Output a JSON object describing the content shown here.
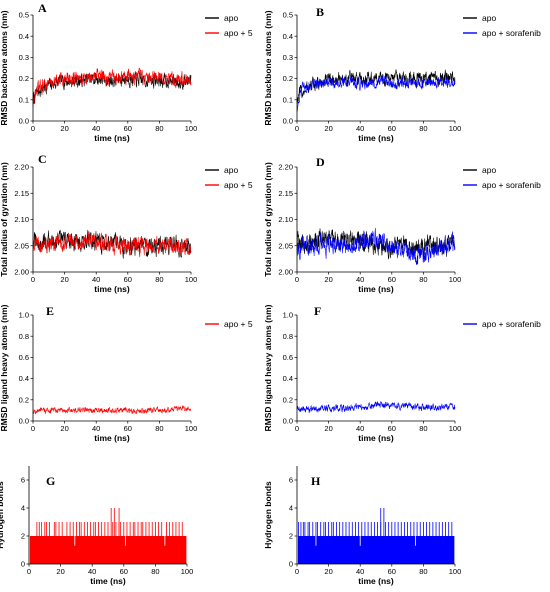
{
  "colors": {
    "apo": "#000000",
    "ligand5": "#ff0000",
    "sorafenib": "#0000ff"
  },
  "chart_data": [
    {
      "panel": "A",
      "type": "line",
      "xlabel": "time (ns)",
      "ylabel": "RMSD backbone atoms (nm)",
      "xlim": [
        0,
        100
      ],
      "ylim": [
        0.0,
        0.5
      ],
      "xticks": [
        "0",
        "20",
        "40",
        "60",
        "80",
        "100"
      ],
      "yticks": [
        "0.0",
        "0.1",
        "0.2",
        "0.3",
        "0.4",
        "0.5"
      ],
      "legend": "top-right",
      "series": [
        {
          "name": "apo",
          "color": "#000000",
          "x": [
            0,
            2,
            5,
            10,
            15,
            20,
            30,
            40,
            50,
            60,
            70,
            80,
            90,
            100
          ],
          "y": [
            0.1,
            0.13,
            0.15,
            0.17,
            0.18,
            0.19,
            0.19,
            0.2,
            0.19,
            0.2,
            0.19,
            0.19,
            0.19,
            0.19
          ],
          "noise": 0.025
        },
        {
          "name": "apo + 5",
          "color": "#ff0000",
          "x": [
            0,
            2,
            5,
            10,
            15,
            20,
            30,
            40,
            50,
            60,
            70,
            80,
            90,
            100
          ],
          "y": [
            0.08,
            0.14,
            0.16,
            0.18,
            0.19,
            0.2,
            0.2,
            0.21,
            0.2,
            0.21,
            0.2,
            0.2,
            0.2,
            0.2
          ],
          "noise": 0.025
        }
      ]
    },
    {
      "panel": "B",
      "type": "line",
      "xlabel": "time (ns)",
      "ylabel": "RMSD backbone atoms (nm)",
      "xlim": [
        0,
        100
      ],
      "ylim": [
        0.0,
        0.5
      ],
      "xticks": [
        "0",
        "20",
        "40",
        "60",
        "80",
        "100"
      ],
      "yticks": [
        "0.0",
        "0.1",
        "0.2",
        "0.3",
        "0.4",
        "0.5"
      ],
      "legend": "top-right",
      "series": [
        {
          "name": "apo",
          "color": "#000000",
          "x": [
            0,
            2,
            5,
            10,
            15,
            20,
            30,
            40,
            50,
            60,
            70,
            80,
            90,
            100
          ],
          "y": [
            0.1,
            0.13,
            0.15,
            0.17,
            0.18,
            0.19,
            0.2,
            0.2,
            0.2,
            0.21,
            0.2,
            0.2,
            0.2,
            0.2
          ],
          "noise": 0.025
        },
        {
          "name": "apo + sorafenib",
          "color": "#0000ff",
          "x": [
            0,
            2,
            5,
            10,
            15,
            20,
            30,
            40,
            50,
            60,
            70,
            80,
            90,
            100
          ],
          "y": [
            0.05,
            0.14,
            0.16,
            0.17,
            0.18,
            0.18,
            0.18,
            0.18,
            0.18,
            0.18,
            0.18,
            0.18,
            0.18,
            0.18
          ],
          "noise": 0.02
        }
      ]
    },
    {
      "panel": "C",
      "type": "line",
      "xlabel": "time (ns)",
      "ylabel": "Total radius of gyration (nm)",
      "xlim": [
        0,
        100
      ],
      "ylim": [
        2.0,
        2.2
      ],
      "xticks": [
        "0",
        "20",
        "40",
        "60",
        "80",
        "100"
      ],
      "yticks": [
        "2.00",
        "2.05",
        "2.10",
        "2.15",
        "2.20"
      ],
      "legend": "top-right",
      "series": [
        {
          "name": "apo",
          "color": "#000000",
          "x": [
            0,
            5,
            10,
            20,
            30,
            40,
            50,
            60,
            70,
            80,
            90,
            100
          ],
          "y": [
            2.06,
            2.05,
            2.06,
            2.06,
            2.06,
            2.06,
            2.05,
            2.05,
            2.05,
            2.05,
            2.05,
            2.05
          ],
          "noise": 0.014
        },
        {
          "name": "apo + 5",
          "color": "#ff0000",
          "x": [
            0,
            5,
            10,
            20,
            30,
            40,
            50,
            60,
            70,
            80,
            90,
            100
          ],
          "y": [
            2.06,
            2.05,
            2.05,
            2.06,
            2.06,
            2.06,
            2.05,
            2.05,
            2.05,
            2.05,
            2.05,
            2.05
          ],
          "noise": 0.012
        }
      ]
    },
    {
      "panel": "D",
      "type": "line",
      "xlabel": "time (ns)",
      "ylabel": "Total radius of gyration (nm)",
      "xlim": [
        0,
        100
      ],
      "ylim": [
        2.0,
        2.2
      ],
      "xticks": [
        "0",
        "20",
        "40",
        "60",
        "80",
        "100"
      ],
      "yticks": [
        "2.00",
        "2.05",
        "2.10",
        "2.15",
        "2.20"
      ],
      "legend": "top-right",
      "series": [
        {
          "name": "apo",
          "color": "#000000",
          "x": [
            0,
            5,
            10,
            20,
            30,
            40,
            50,
            60,
            70,
            80,
            90,
            100
          ],
          "y": [
            2.06,
            2.05,
            2.06,
            2.06,
            2.06,
            2.06,
            2.05,
            2.05,
            2.05,
            2.05,
            2.05,
            2.05
          ],
          "noise": 0.014
        },
        {
          "name": "apo + sorafenib",
          "color": "#0000ff",
          "x": [
            0,
            5,
            10,
            20,
            30,
            40,
            50,
            60,
            70,
            80,
            90,
            100
          ],
          "y": [
            2.05,
            2.05,
            2.05,
            2.05,
            2.05,
            2.06,
            2.06,
            2.05,
            2.04,
            2.03,
            2.05,
            2.05
          ],
          "noise": 0.014
        }
      ]
    },
    {
      "panel": "E",
      "type": "line",
      "xlabel": "time (ns)",
      "ylabel": "RMSD ligand heavy atoms (nm)",
      "xlim": [
        0,
        100
      ],
      "ylim": [
        0.0,
        1.0
      ],
      "xticks": [
        "0",
        "20",
        "40",
        "60",
        "80",
        "100"
      ],
      "yticks": [
        "0.0",
        "0.2",
        "0.4",
        "0.6",
        "0.8",
        "1.0"
      ],
      "legend": "top-right",
      "series": [
        {
          "name": "apo + 5",
          "color": "#ff0000",
          "x": [
            0,
            10,
            20,
            30,
            40,
            50,
            60,
            70,
            80,
            90,
            100
          ],
          "y": [
            0.09,
            0.1,
            0.1,
            0.1,
            0.1,
            0.1,
            0.1,
            0.1,
            0.1,
            0.11,
            0.11
          ],
          "noise": 0.02
        }
      ]
    },
    {
      "panel": "F",
      "type": "line",
      "xlabel": "time (ns)",
      "ylabel": "RMSD ligand heavy atoms (nm)",
      "xlim": [
        0,
        100
      ],
      "ylim": [
        0.0,
        1.0
      ],
      "xticks": [
        "0",
        "20",
        "40",
        "60",
        "80",
        "100"
      ],
      "yticks": [
        "0.0",
        "0.2",
        "0.4",
        "0.6",
        "0.8",
        "1.0"
      ],
      "legend": "top-right",
      "series": [
        {
          "name": "apo + sorafenib",
          "color": "#0000ff",
          "x": [
            0,
            10,
            20,
            30,
            40,
            50,
            60,
            70,
            80,
            90,
            100
          ],
          "y": [
            0.11,
            0.11,
            0.12,
            0.12,
            0.13,
            0.15,
            0.15,
            0.14,
            0.13,
            0.13,
            0.13
          ],
          "noise": 0.025
        }
      ]
    },
    {
      "panel": "G",
      "type": "bar",
      "xlabel": "time (ns)",
      "ylabel": "Hydrogen bonds",
      "xlim": [
        0,
        100
      ],
      "ylim": [
        0,
        7
      ],
      "xticks": [
        "0",
        "20",
        "40",
        "60",
        "80",
        "100"
      ],
      "yticks": [
        "0",
        "2",
        "4",
        "6"
      ],
      "legend": "none",
      "series": [
        {
          "color": "#ff0000",
          "baseline": 2,
          "spikes_at_3": [
            5,
            6.5,
            8,
            10,
            11,
            13,
            16,
            17,
            19,
            21,
            24,
            26,
            28,
            30,
            32,
            33,
            35,
            37,
            39,
            41,
            42,
            44,
            46,
            48,
            50,
            53,
            55,
            57,
            58,
            60,
            62,
            64,
            66,
            67,
            69,
            71,
            72,
            74,
            76,
            78,
            80,
            82,
            84,
            87,
            89,
            91,
            93,
            95,
            97
          ],
          "spikes_at_4": [
            52,
            54,
            57
          ],
          "dips_below_2": [
            29,
            61,
            86
          ]
        }
      ]
    },
    {
      "panel": "H",
      "type": "bar",
      "xlabel": "time (ns)",
      "ylabel": "Hydrogen bonds",
      "xlim": [
        0,
        100
      ],
      "ylim": [
        0,
        7
      ],
      "xticks": [
        "0",
        "20",
        "40",
        "60",
        "80",
        "100"
      ],
      "yticks": [
        "0",
        "2",
        "4",
        "6"
      ],
      "legend": "none",
      "series": [
        {
          "color": "#0000ff",
          "baseline": 2,
          "spikes_at_3": [
            1,
            2.5,
            4,
            5,
            7,
            8,
            10,
            12,
            13,
            15,
            17,
            18,
            20,
            22,
            23,
            25,
            27,
            29,
            31,
            33,
            35,
            37,
            39,
            41,
            43,
            45,
            47,
            49,
            51,
            53,
            56,
            58,
            60,
            62,
            64,
            66,
            68,
            70,
            72,
            74,
            76,
            78,
            80,
            82,
            84,
            86,
            88,
            90,
            92,
            94,
            96,
            98
          ],
          "spikes_at_4": [
            53,
            55
          ],
          "dips_below_2": [
            12,
            40,
            75
          ]
        }
      ]
    }
  ]
}
